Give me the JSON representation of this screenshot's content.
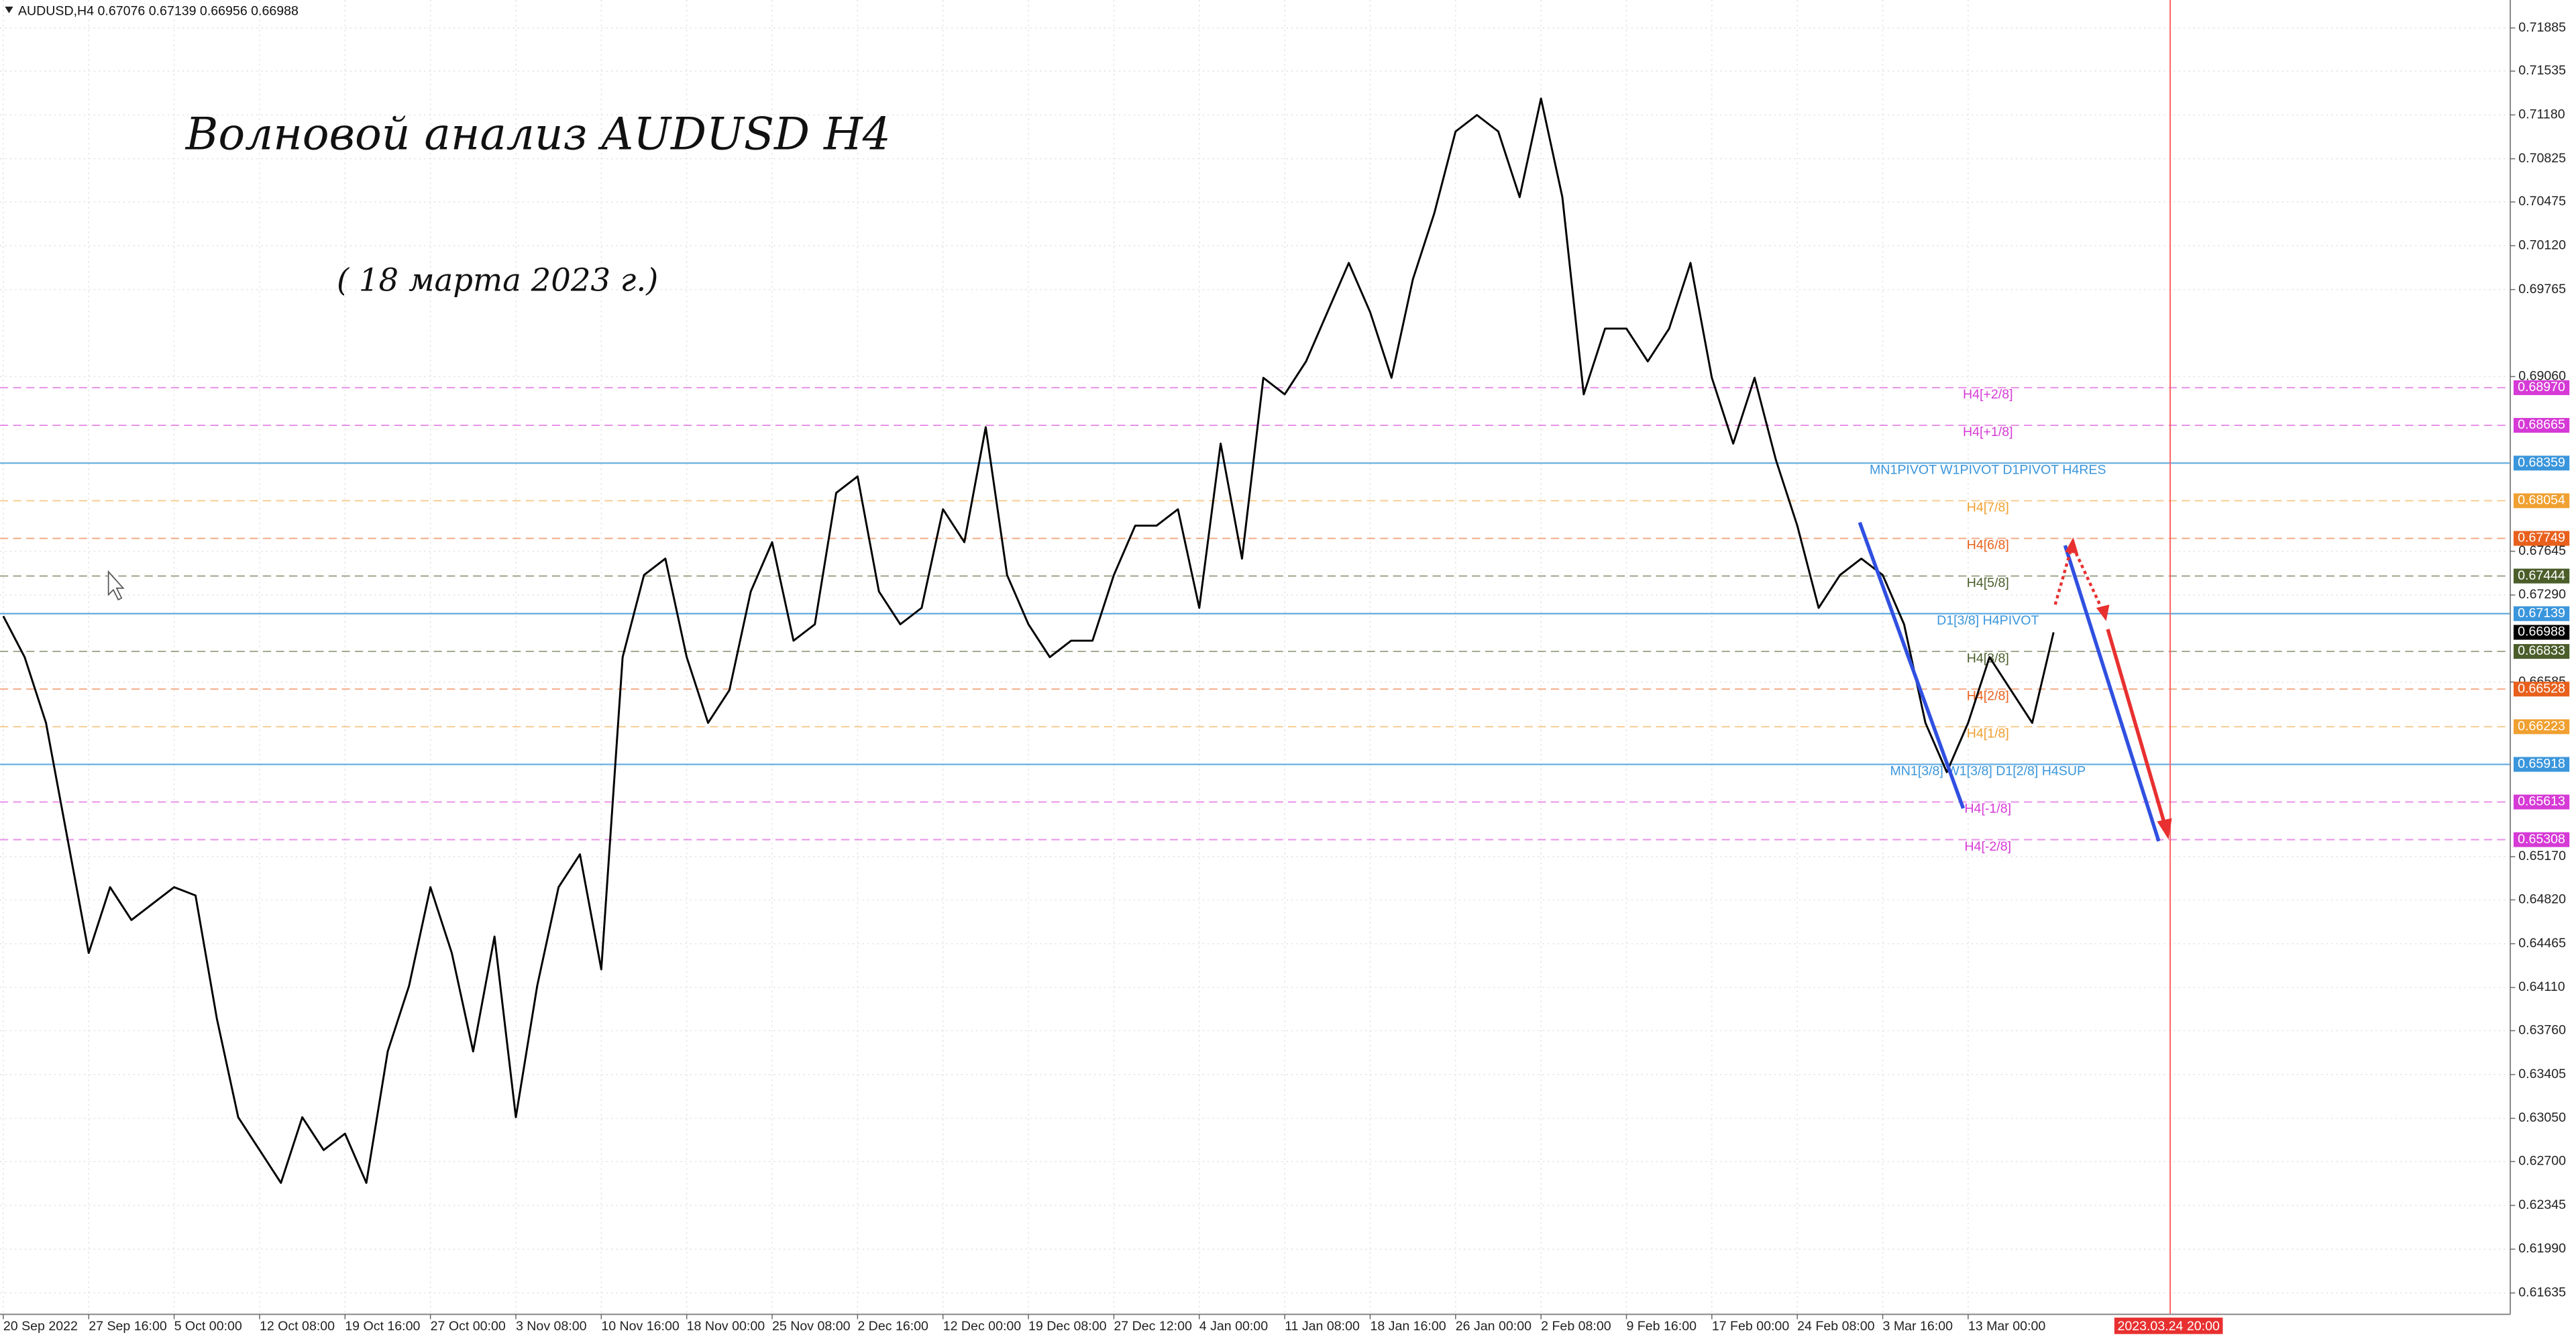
{
  "header": "AUDUSD,H4  0.67076 0.67139 0.66956 0.66988",
  "chart_data": {
    "type": "line",
    "title": "Волновой анализ AUDUSD H4",
    "subtitle": "( 18 марта 2023 г.)",
    "categories": [
      "20 Sep 2022",
      null,
      null,
      null,
      "27 Sep 16:00",
      null,
      null,
      null,
      "5 Oct 00:00",
      null,
      null,
      null,
      "12 Oct 08:00",
      null,
      null,
      null,
      "19 Oct 16:00",
      null,
      null,
      null,
      "27 Oct 00:00",
      null,
      null,
      null,
      "3 Nov 08:00",
      null,
      null,
      null,
      "10 Nov 16:00",
      null,
      null,
      null,
      "18 Nov 00:00",
      null,
      null,
      null,
      "25 Nov 08:00",
      null,
      null,
      null,
      "2 Dec 16:00",
      null,
      null,
      null,
      "12 Dec 00:00",
      null,
      null,
      null,
      "19 Dec 08:00",
      null,
      null,
      null,
      "27 Dec 12:00",
      null,
      null,
      null,
      "4 Jan 00:00",
      null,
      null,
      null,
      "11 Jan 08:00",
      null,
      null,
      null,
      "18 Jan 16:00",
      null,
      null,
      null,
      "26 Jan 00:00",
      null,
      null,
      null,
      "2 Feb 08:00",
      null,
      null,
      null,
      "9 Feb 16:00",
      null,
      null,
      null,
      "17 Feb 00:00",
      null,
      null,
      null,
      "24 Feb 08:00",
      null,
      null,
      null,
      "3 Mar 16:00",
      null,
      null,
      null,
      "13 Mar 00:00",
      null,
      null,
      null,
      null
    ],
    "values": [
      0.67119,
      0.66787,
      0.66254,
      0.65322,
      0.6439,
      0.64923,
      0.64657,
      0.6479,
      0.64923,
      0.64856,
      0.63858,
      0.63059,
      0.62793,
      0.62527,
      0.63059,
      0.62793,
      0.62926,
      0.62527,
      0.63592,
      0.64124,
      0.64923,
      0.6439,
      0.63592,
      0.64523,
      0.63059,
      0.64124,
      0.64923,
      0.65189,
      0.64257,
      0.66787,
      0.67452,
      0.67585,
      0.66787,
      0.66254,
      0.6652,
      0.67319,
      0.67718,
      0.6692,
      0.67053,
      0.68118,
      0.68251,
      0.67319,
      0.67053,
      0.67186,
      0.67985,
      0.67718,
      0.6865,
      0.67452,
      0.67053,
      0.66787,
      0.6692,
      0.6692,
      0.67452,
      0.67852,
      0.67852,
      0.67985,
      0.67186,
      0.68517,
      0.67585,
      0.6905,
      0.68916,
      0.69183,
      0.69582,
      0.69981,
      0.69582,
      0.6905,
      0.69848,
      0.70381,
      0.71046,
      0.71179,
      0.71046,
      0.70514,
      0.71313,
      0.70514,
      0.68916,
      0.69449,
      0.69449,
      0.69183,
      0.69449,
      0.69981,
      0.6905,
      0.68517,
      0.6905,
      0.68384,
      0.67852,
      0.67186,
      0.67452,
      0.67585,
      0.67452,
      0.67053,
      0.66254,
      0.65855,
      0.66254,
      0.66787,
      0.6652,
      0.66254,
      0.66988
    ],
    "color": "#000000",
    "ylim": [
      0.61462,
      0.72111
    ],
    "yticks": [
      0.71885,
      0.71535,
      {
        "value": 0.7118,
        "label": "0.71180"
      },
      0.70825,
      0.70475,
      {
        "value": 0.7012,
        "label": "0.70120"
      },
      0.69765,
      {
        "value": 0.6906,
        "label": "0.69060"
      },
      0.67645,
      {
        "value": 0.6729,
        "label": "0.67290"
      },
      0.66585,
      {
        "value": 0.6517,
        "label": "0.65170"
      },
      {
        "value": 0.6482,
        "label": "0.64820"
      },
      0.64465,
      {
        "value": 0.6411,
        "label": "0.64110"
      },
      {
        "value": 0.6376,
        "label": "0.63760"
      },
      0.63405,
      {
        "value": 0.6305,
        "label": "0.63050"
      },
      {
        "value": 0.627,
        "label": "0.62700"
      },
      0.62345,
      {
        "value": 0.6199,
        "label": "0.61990"
      },
      0.61635
    ],
    "grid": true,
    "levels": [
      {
        "value": 0.6897,
        "value_label": "0.68970",
        "name": "H4[+2/8]",
        "color": "#d63ad6",
        "dashed": true
      },
      {
        "value": 0.68665,
        "name": "H4[+1/8]",
        "color": "#d63ad6",
        "dashed": true
      },
      {
        "value": 0.68359,
        "name": "MN1PIVOT W1PIVOT D1PIVOT H4RES",
        "color": "#3a96dc",
        "dashed": false
      },
      {
        "value": 0.68054,
        "name": "H4[7/8]",
        "color": "#f0a030",
        "dashed": true
      },
      {
        "value": 0.67749,
        "name": "H4[6/8]",
        "color": "#e8601c",
        "dashed": true
      },
      {
        "value": 0.67444,
        "name": "H4[5/8]",
        "color": "#4b5e2a",
        "dashed": true
      },
      {
        "value": 0.67139,
        "name": "D1[3/8] H4PIVOT",
        "color": "#3a96dc",
        "dashed": false
      },
      {
        "value": 0.66833,
        "name": "H4[3/8]",
        "color": "#4b5e2a",
        "dashed": true
      },
      {
        "value": 0.66528,
        "name": "H4[2/8]",
        "color": "#e8601c",
        "dashed": true
      },
      {
        "value": 0.66223,
        "name": "H4[1/8]",
        "color": "#f0a030",
        "dashed": true
      },
      {
        "value": 0.65918,
        "name": "MN1[3/8] W1[3/8] D1[2/8] H4SUP",
        "color": "#3a96dc",
        "dashed": false
      },
      {
        "value": 0.65613,
        "name": "H4[-1/8]",
        "color": "#d63ad6",
        "dashed": true
      },
      {
        "value": 0.65308,
        "name": "H4[-2/8]",
        "color": "#d63ad6",
        "dashed": true
      }
    ],
    "current_price": 0.66988,
    "marker_label": "2023.03.24 20:00"
  }
}
